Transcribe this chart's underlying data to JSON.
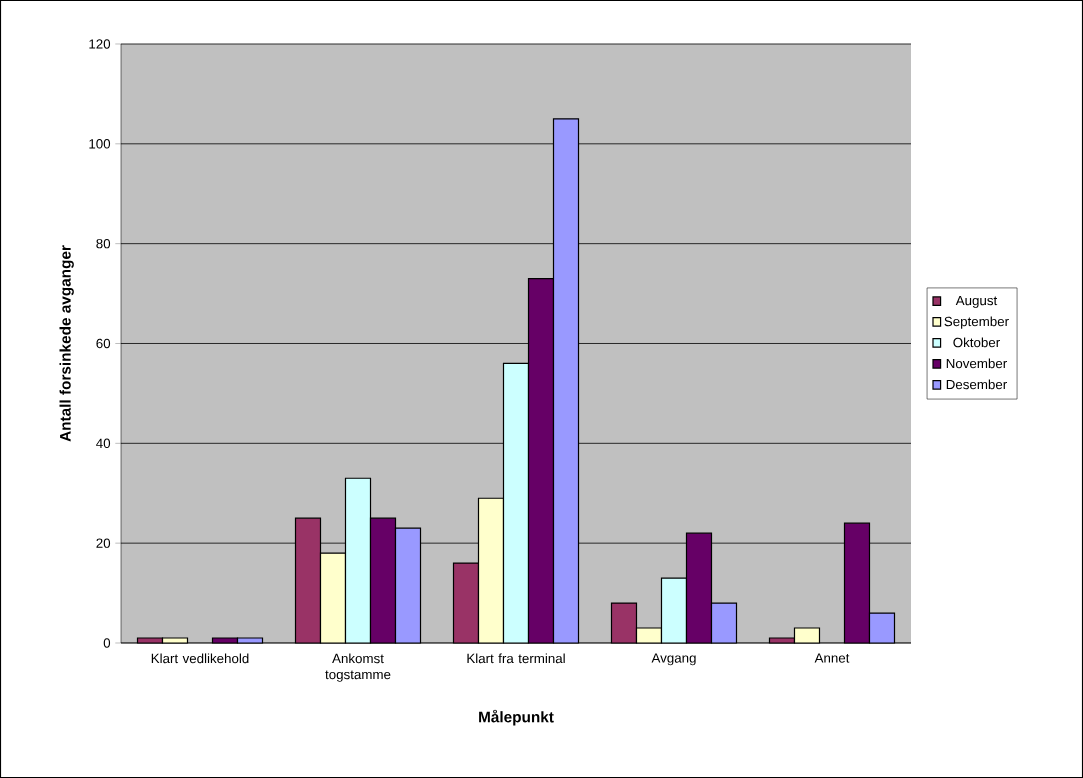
{
  "chart_data": {
    "type": "bar",
    "xlabel": "Målepunkt",
    "ylabel": "Antall forsinkede avganger",
    "categories": [
      "Klart vedlikehold",
      "Ankomst togstamme",
      "Klart fra terminal",
      "Avgang",
      "Annet"
    ],
    "series": [
      {
        "name": "August",
        "color": "#993366",
        "values": [
          1,
          25,
          16,
          8,
          1
        ]
      },
      {
        "name": "September",
        "color": "#ffffcc",
        "values": [
          1,
          18,
          29,
          3,
          3
        ]
      },
      {
        "name": "Oktober",
        "color": "#ccffff",
        "values": [
          0,
          33,
          56,
          13,
          0
        ]
      },
      {
        "name": "November",
        "color": "#660066",
        "values": [
          1,
          25,
          73,
          22,
          24
        ]
      },
      {
        "name": "Desember",
        "color": "#9999ff",
        "values": [
          1,
          23,
          105,
          8,
          6
        ]
      }
    ],
    "ylim": [
      0,
      120
    ],
    "yticks": [
      0,
      20,
      40,
      60,
      80,
      100,
      120
    ],
    "grid": "y",
    "legend": "right"
  }
}
